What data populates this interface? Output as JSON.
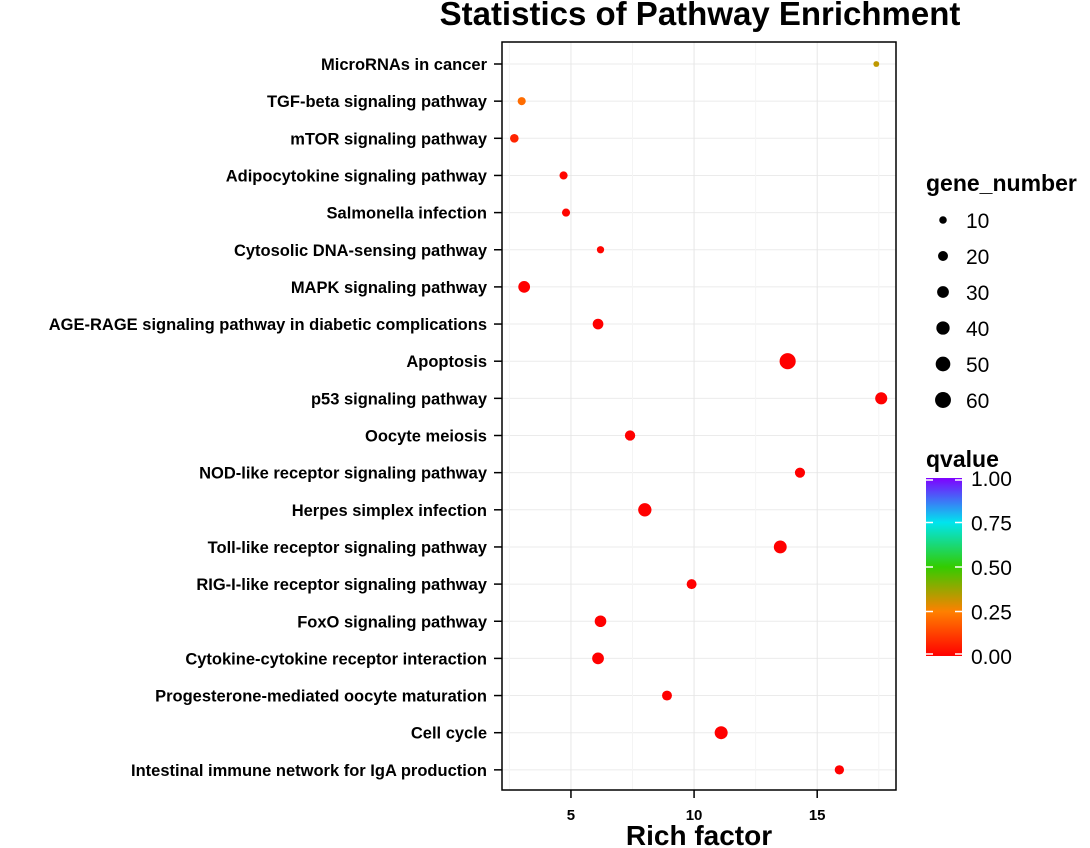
{
  "chart_data": {
    "type": "scatter",
    "title": "Statistics of Pathway Enrichment",
    "xlabel": "Rich factor",
    "ylabel": "",
    "xlim": [
      2.2,
      18.2
    ],
    "xticks": [
      5,
      10,
      15
    ],
    "categories": [
      "MicroRNAs in cancer",
      "TGF-beta signaling pathway",
      "mTOR signaling pathway",
      "Adipocytokine signaling pathway",
      "Salmonella infection",
      "Cytosolic DNA-sensing pathway",
      "MAPK signaling pathway",
      "AGE-RAGE signaling pathway in diabetic complications",
      "Apoptosis",
      "p53 signaling pathway",
      "Oocyte meiosis",
      "NOD-like receptor signaling pathway",
      "Herpes simplex infection",
      "Toll-like receptor signaling pathway",
      "RIG-I-like receptor signaling pathway",
      "FoxO signaling pathway",
      "Cytokine-cytokine receptor interaction",
      "Progesterone-mediated oocyte maturation",
      "Cell cycle",
      "Intestinal immune network for IgA production"
    ],
    "points": [
      {
        "pathway": "MicroRNAs in cancer",
        "rich_factor": 17.4,
        "gene_number": 5,
        "qvalue": 0.33
      },
      {
        "pathway": "TGF-beta signaling pathway",
        "rich_factor": 3.0,
        "gene_number": 12,
        "qvalue": 0.21
      },
      {
        "pathway": "mTOR signaling pathway",
        "rich_factor": 2.7,
        "gene_number": 14,
        "qvalue": 0.07
      },
      {
        "pathway": "Adipocytokine signaling pathway",
        "rich_factor": 4.7,
        "gene_number": 12,
        "qvalue": 0.01
      },
      {
        "pathway": "Salmonella infection",
        "rich_factor": 4.8,
        "gene_number": 12,
        "qvalue": 0.01
      },
      {
        "pathway": "Cytosolic DNA-sensing pathway",
        "rich_factor": 6.2,
        "gene_number": 9,
        "qvalue": 0.01
      },
      {
        "pathway": "MAPK signaling pathway",
        "rich_factor": 3.1,
        "gene_number": 30,
        "qvalue": 0.0
      },
      {
        "pathway": "AGE-RAGE signaling pathway in diabetic complications",
        "rich_factor": 6.1,
        "gene_number": 24,
        "qvalue": 0.0
      },
      {
        "pathway": "Apoptosis",
        "rich_factor": 13.8,
        "gene_number": 62,
        "qvalue": 0.0
      },
      {
        "pathway": "p53 signaling pathway",
        "rich_factor": 17.6,
        "gene_number": 32,
        "qvalue": 0.0
      },
      {
        "pathway": "Oocyte meiosis",
        "rich_factor": 7.4,
        "gene_number": 22,
        "qvalue": 0.0
      },
      {
        "pathway": "NOD-like receptor signaling pathway",
        "rich_factor": 14.3,
        "gene_number": 21,
        "qvalue": 0.0
      },
      {
        "pathway": "Herpes simplex infection",
        "rich_factor": 8.0,
        "gene_number": 40,
        "qvalue": 0.0
      },
      {
        "pathway": "Toll-like receptor signaling pathway",
        "rich_factor": 13.5,
        "gene_number": 37,
        "qvalue": 0.0
      },
      {
        "pathway": "RIG-I-like receptor signaling pathway",
        "rich_factor": 9.9,
        "gene_number": 20,
        "qvalue": 0.0
      },
      {
        "pathway": "FoxO signaling pathway",
        "rich_factor": 6.2,
        "gene_number": 29,
        "qvalue": 0.0
      },
      {
        "pathway": "Cytokine-cytokine receptor interaction",
        "rich_factor": 6.1,
        "gene_number": 30,
        "qvalue": 0.0
      },
      {
        "pathway": "Progesterone-mediated oocyte maturation",
        "rich_factor": 8.9,
        "gene_number": 20,
        "qvalue": 0.0
      },
      {
        "pathway": "Cell cycle",
        "rich_factor": 11.1,
        "gene_number": 38,
        "qvalue": 0.0
      },
      {
        "pathway": "Intestinal immune network for IgA production",
        "rich_factor": 15.9,
        "gene_number": 17,
        "qvalue": 0.0
      }
    ],
    "size_legend": {
      "title": "gene_number",
      "values": [
        10,
        20,
        30,
        40,
        50,
        60
      ],
      "labels": [
        "10",
        "20",
        "30",
        "40",
        "50",
        "60"
      ]
    },
    "color_legend": {
      "title": "qvalue",
      "range": [
        0,
        1
      ],
      "ticks": [
        "1.00",
        "0.75",
        "0.50",
        "0.25",
        "0.00"
      ],
      "tick_values": [
        1.0,
        0.75,
        0.5,
        0.25,
        0.0
      ],
      "gradient": [
        "#ff0000",
        "#ff8000",
        "#33cc00",
        "#00e5ee",
        "#7f00ff"
      ]
    },
    "grid": true,
    "legend_position": "right"
  }
}
